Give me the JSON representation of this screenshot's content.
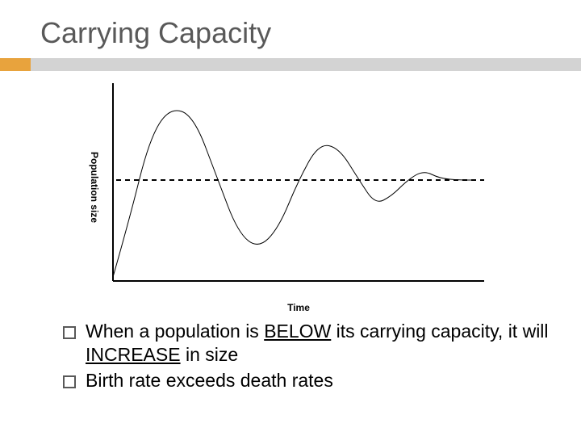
{
  "title": "Carrying Capacity",
  "accent": {
    "left_color": "#e8a33d",
    "right_color": "#d3d3d3"
  },
  "chart": {
    "type": "line",
    "x_label": "Time",
    "y_label": "Population size",
    "background_color": "#ffffff",
    "axis_color": "#000000",
    "axis_width": 2,
    "curve_color": "#000000",
    "curve_width": 1,
    "carrying_capacity_y": 120,
    "carrying_capacity_style": "dashed",
    "carrying_capacity_dash": "6,5",
    "xlim": [
      0,
      460
    ],
    "ylim": [
      0,
      240
    ],
    "curve_points": [
      [
        10,
        240
      ],
      [
        30,
        170
      ],
      [
        55,
        70
      ],
      [
        80,
        30
      ],
      [
        110,
        40
      ],
      [
        140,
        120
      ],
      [
        165,
        185
      ],
      [
        190,
        205
      ],
      [
        215,
        180
      ],
      [
        240,
        120
      ],
      [
        265,
        75
      ],
      [
        290,
        80
      ],
      [
        315,
        120
      ],
      [
        335,
        150
      ],
      [
        355,
        140
      ],
      [
        375,
        120
      ],
      [
        395,
        108
      ],
      [
        415,
        118
      ],
      [
        440,
        120
      ],
      [
        460,
        120
      ]
    ]
  },
  "bullets": [
    {
      "prefix": "When a population is ",
      "emph1": "BELOW",
      "mid": " its carrying capacity, it will ",
      "emph2": "INCREASE",
      "suffix": " in size"
    },
    {
      "text": "Birth rate exceeds death rates"
    }
  ],
  "text_color": "#000000",
  "title_color": "#595959",
  "bullet_marker_color": "#595959",
  "body_fontsize": 23,
  "title_fontsize": 36
}
